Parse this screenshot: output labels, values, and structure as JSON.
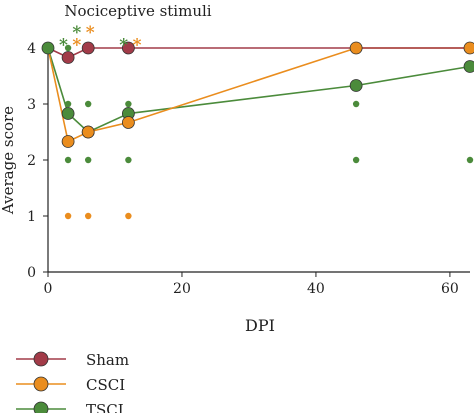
{
  "chart_data": {
    "type": "line",
    "title": "Nociceptive stimuli",
    "xlabel": "DPI",
    "ylabel": "Average score",
    "xlim": [
      0,
      63
    ],
    "ylim": [
      0,
      4
    ],
    "xticks": [
      0,
      20,
      40,
      60
    ],
    "yticks": [
      0,
      1,
      2,
      3,
      4
    ],
    "grid": false,
    "legend_position": "bottom-left",
    "series": [
      {
        "name": "Sham",
        "color": "#a23b48",
        "x": [
          0,
          3,
          6,
          12,
          46,
          63
        ],
        "y": [
          4,
          3.83,
          4,
          4,
          4,
          4
        ],
        "marker_x": [
          6,
          12
        ],
        "individual_points": []
      },
      {
        "name": "CSCI",
        "color": "#ea8d1e",
        "x": [
          0,
          3,
          6,
          12,
          46,
          63
        ],
        "y": [
          4,
          2.33,
          2.5,
          2.67,
          4,
          4
        ],
        "marker_x": [
          3,
          6,
          12,
          46,
          63
        ],
        "individual_points": [
          [
            3,
            1
          ],
          [
            6,
            1
          ],
          [
            12,
            1
          ]
        ]
      },
      {
        "name": "TSCI",
        "color": "#4b8b3b",
        "x": [
          0,
          3,
          6,
          12,
          46,
          63
        ],
        "y": [
          4,
          2.83,
          2.5,
          2.83,
          3.33,
          3.67
        ],
        "marker_x": [
          0,
          3,
          6,
          12,
          46,
          63
        ],
        "individual_points": [
          [
            3,
            4
          ],
          [
            3,
            3
          ],
          [
            3,
            2
          ],
          [
            6,
            3
          ],
          [
            6,
            2
          ],
          [
            12,
            3
          ],
          [
            12,
            2
          ],
          [
            46,
            3
          ],
          [
            46,
            2
          ],
          [
            63,
            2
          ]
        ]
      }
    ],
    "annotations": [
      {
        "text": "*",
        "x": 2.3,
        "y_above": 4.1,
        "color": "#4b8b3b"
      },
      {
        "text": "*",
        "x": 4.3,
        "y_above": 4.1,
        "color": "#ea8d1e"
      },
      {
        "text": "*",
        "x": 4.3,
        "y_above": 4.32,
        "color": "#4b8b3b"
      },
      {
        "text": "*",
        "x": 6.3,
        "y_above": 4.32,
        "color": "#ea8d1e"
      },
      {
        "text": "*",
        "x": 11.3,
        "y_above": 4.1,
        "color": "#4b8b3b"
      },
      {
        "text": "*",
        "x": 13.3,
        "y_above": 4.1,
        "color": "#ea8d1e"
      }
    ]
  }
}
